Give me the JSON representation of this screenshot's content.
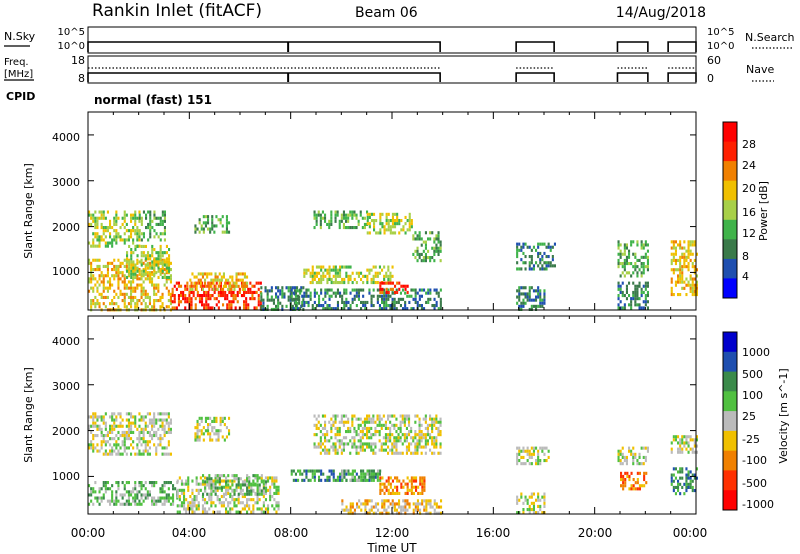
{
  "header": {
    "station": "Rankin Inlet (fitACF)",
    "beam": "Beam 06",
    "date": "14/Aug/2018"
  },
  "strip_labels": {
    "nsky": "N.Sky",
    "nsearch": "N.Search",
    "freq_line1": "Freq.",
    "freq_line2": "[MHz]",
    "nave": "Nave",
    "cpid": "CPID",
    "cpid_value": "normal (fast) 151"
  },
  "strip_ticks": {
    "noise_left": [
      "10^5",
      "10^0"
    ],
    "noise_right": [
      "10^5",
      "10^0"
    ],
    "freq_left": [
      "18",
      "8"
    ],
    "freq_right": [
      "60",
      "0"
    ]
  },
  "colors": {
    "power": [
      "#0000ff",
      "#1f4fb0",
      "#3a7a4a",
      "#3fb34a",
      "#a8d048",
      "#f0c000",
      "#f08000",
      "#ff2000",
      "#ff0000"
    ],
    "velocity": [
      "#0000cc",
      "#1f4fb0",
      "#3a8a4a",
      "#50c040",
      "#bbbbbb",
      "#f0c000",
      "#f08000",
      "#ff3000",
      "#ff0000"
    ]
  },
  "chart_data": [
    {
      "type": "heatmap",
      "title": "",
      "xlabel": "",
      "ylabel": "Slant Range [km]",
      "xlim": [
        "00:00",
        "24:00"
      ],
      "ylim": [
        180,
        4500
      ],
      "yticks": [
        "1000",
        "2000",
        "3000",
        "4000"
      ],
      "colorbar_label": "Power [dB]",
      "colorbar_ticks": [
        "4",
        "8",
        "12",
        "16",
        "20",
        "24",
        "28"
      ],
      "scatter_regions": [
        {
          "t0": 0.0,
          "t1": 2.0,
          "r0": 1550,
          "r1": 2350,
          "level": 4
        },
        {
          "t0": 2.0,
          "t1": 3.0,
          "r0": 1700,
          "r1": 2350,
          "level": 3
        },
        {
          "t0": 4.2,
          "t1": 5.6,
          "r0": 1850,
          "r1": 2250,
          "level": 3
        },
        {
          "t0": 8.9,
          "t1": 11.0,
          "r0": 2000,
          "r1": 2350,
          "level": 3
        },
        {
          "t0": 11.0,
          "t1": 12.8,
          "r0": 1850,
          "r1": 2300,
          "level": 4
        },
        {
          "t0": 12.8,
          "t1": 13.9,
          "r0": 1250,
          "r1": 1900,
          "level": 3
        },
        {
          "t0": 0.0,
          "t1": 3.3,
          "r0": 200,
          "r1": 1300,
          "level": 5
        },
        {
          "t0": 1.5,
          "t1": 3.2,
          "r0": 900,
          "r1": 1600,
          "level": 4
        },
        {
          "t0": 3.3,
          "t1": 6.8,
          "r0": 200,
          "r1": 800,
          "level": 7
        },
        {
          "t0": 4.0,
          "t1": 6.3,
          "r0": 600,
          "r1": 1000,
          "level": 5
        },
        {
          "t0": 6.8,
          "t1": 8.5,
          "r0": 200,
          "r1": 700,
          "level": 2
        },
        {
          "t0": 8.5,
          "t1": 12.0,
          "r0": 800,
          "r1": 1150,
          "level": 4
        },
        {
          "t0": 8.0,
          "t1": 13.9,
          "r0": 200,
          "r1": 650,
          "level": 2
        },
        {
          "t0": 11.5,
          "t1": 12.6,
          "r0": 550,
          "r1": 800,
          "level": 7
        },
        {
          "t0": 16.9,
          "t1": 18.4,
          "r0": 1100,
          "r1": 1650,
          "level": 2
        },
        {
          "t0": 16.9,
          "t1": 18.0,
          "r0": 200,
          "r1": 700,
          "level": 2
        },
        {
          "t0": 20.9,
          "t1": 22.1,
          "r0": 900,
          "r1": 1700,
          "level": 3
        },
        {
          "t0": 20.9,
          "t1": 22.1,
          "r0": 250,
          "r1": 800,
          "level": 2
        },
        {
          "t0": 23.0,
          "t1": 24.0,
          "r0": 500,
          "r1": 1700,
          "level": 5
        }
      ]
    },
    {
      "type": "heatmap",
      "title": "",
      "xlabel": "Time UT",
      "ylabel": "Slant Range [km]",
      "xlim": [
        "00:00",
        "24:00"
      ],
      "xticks": [
        "00:00",
        "04:00",
        "08:00",
        "12:00",
        "16:00",
        "20:00",
        "00:00"
      ],
      "ylim": [
        180,
        4500
      ],
      "yticks": [
        "1000",
        "2000",
        "3000",
        "4000"
      ],
      "colorbar_label": "Velocity [m s^-1]",
      "colorbar_ticks": [
        "1000",
        "500",
        "100",
        "25",
        "-25",
        "-100",
        "-500",
        "-1000"
      ],
      "scatter_regions": [
        {
          "t0": 0.0,
          "t1": 3.3,
          "r0": 1500,
          "r1": 2400,
          "level": 4
        },
        {
          "t0": 4.2,
          "t1": 5.6,
          "r0": 1800,
          "r1": 2300,
          "level": 4
        },
        {
          "t0": 8.9,
          "t1": 13.9,
          "r0": 1500,
          "r1": 2350,
          "level": 4
        },
        {
          "t0": 0.0,
          "t1": 3.5,
          "r0": 400,
          "r1": 900,
          "level": 3
        },
        {
          "t0": 3.5,
          "t1": 7.5,
          "r0": 250,
          "r1": 1000,
          "level": 4
        },
        {
          "t0": 4.5,
          "t1": 7.0,
          "r0": 600,
          "r1": 1050,
          "level": 3
        },
        {
          "t0": 8.0,
          "t1": 11.5,
          "r0": 900,
          "r1": 1150,
          "level": 2
        },
        {
          "t0": 10.0,
          "t1": 11.5,
          "r0": 900,
          "r1": 1150,
          "level": 3
        },
        {
          "t0": 11.5,
          "t1": 13.3,
          "r0": 600,
          "r1": 1000,
          "level": 6
        },
        {
          "t0": 10.0,
          "t1": 13.9,
          "r0": 200,
          "r1": 500,
          "level": 5
        },
        {
          "t0": 16.9,
          "t1": 18.2,
          "r0": 1250,
          "r1": 1650,
          "level": 4
        },
        {
          "t0": 16.9,
          "t1": 18.0,
          "r0": 200,
          "r1": 650,
          "level": 4
        },
        {
          "t0": 21.0,
          "t1": 22.0,
          "r0": 700,
          "r1": 1100,
          "level": 6
        },
        {
          "t0": 20.9,
          "t1": 22.1,
          "r0": 1300,
          "r1": 1650,
          "level": 4
        },
        {
          "t0": 23.0,
          "t1": 24.0,
          "r0": 600,
          "r1": 1200,
          "level": 2
        },
        {
          "t0": 23.0,
          "t1": 24.0,
          "r0": 1500,
          "r1": 1900,
          "level": 4
        }
      ]
    }
  ],
  "noise_strip": {
    "segments": [
      [
        0.0,
        13.9
      ],
      [
        16.9,
        18.4
      ],
      [
        20.9,
        22.1
      ],
      [
        22.9,
        24.0
      ]
    ],
    "dropouts": [
      7.9
    ]
  }
}
